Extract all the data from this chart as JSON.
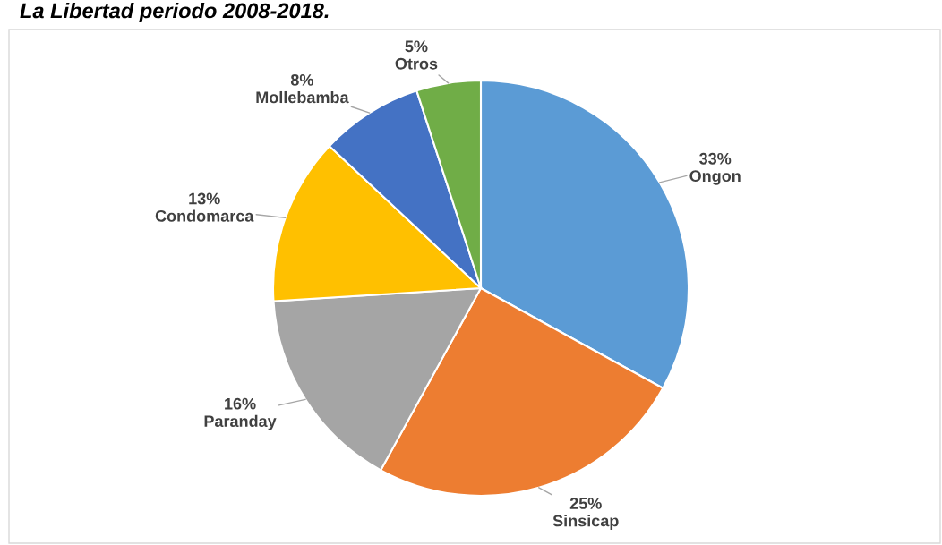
{
  "chart_data": {
    "type": "pie",
    "title": "La Libertad periodo 2008-2018.",
    "categories": [
      "Ongon",
      "Sinsicap",
      "Paranday",
      "Condomarca",
      "Mollebamba",
      "Otros"
    ],
    "values": [
      33,
      25,
      16,
      13,
      8,
      5
    ],
    "value_labels": [
      "33%",
      "25%",
      "16%",
      "13%",
      "8%",
      "5%"
    ],
    "colors": [
      "#5b9bd5",
      "#ed7d31",
      "#a5a5a5",
      "#ffc000",
      "#4472c4",
      "#70ad47"
    ]
  }
}
